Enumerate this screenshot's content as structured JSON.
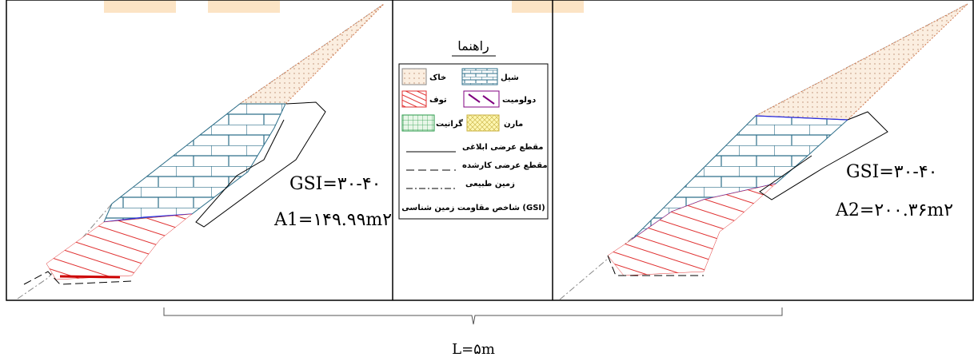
{
  "left_panel": {
    "gsi_label": "GSI=۳۰-۴۰",
    "area_label": "A1=۱۴۹.۹۹m۲"
  },
  "legend": {
    "title": "راهنما",
    "materials": [
      {
        "label": "شیل"
      },
      {
        "label": "خاک"
      },
      {
        "label": "دولومیت"
      },
      {
        "label": "توف"
      },
      {
        "label": "مارن"
      },
      {
        "label": "گرانیت"
      }
    ],
    "lines": [
      {
        "label": "مقطع عرضی ابلاغی"
      },
      {
        "label": "مقطع عرضی کارشده"
      },
      {
        "label": "زمین طبیعی"
      }
    ],
    "gsi_note": "شاخص مقاومت زمین شناسی (GSI)"
  },
  "right_panel": {
    "gsi_label": "GSI=۳۰-۴۰",
    "area_label": "A2=۲۰۰.۳۶m۲"
  },
  "length_label": "L=۵m"
}
